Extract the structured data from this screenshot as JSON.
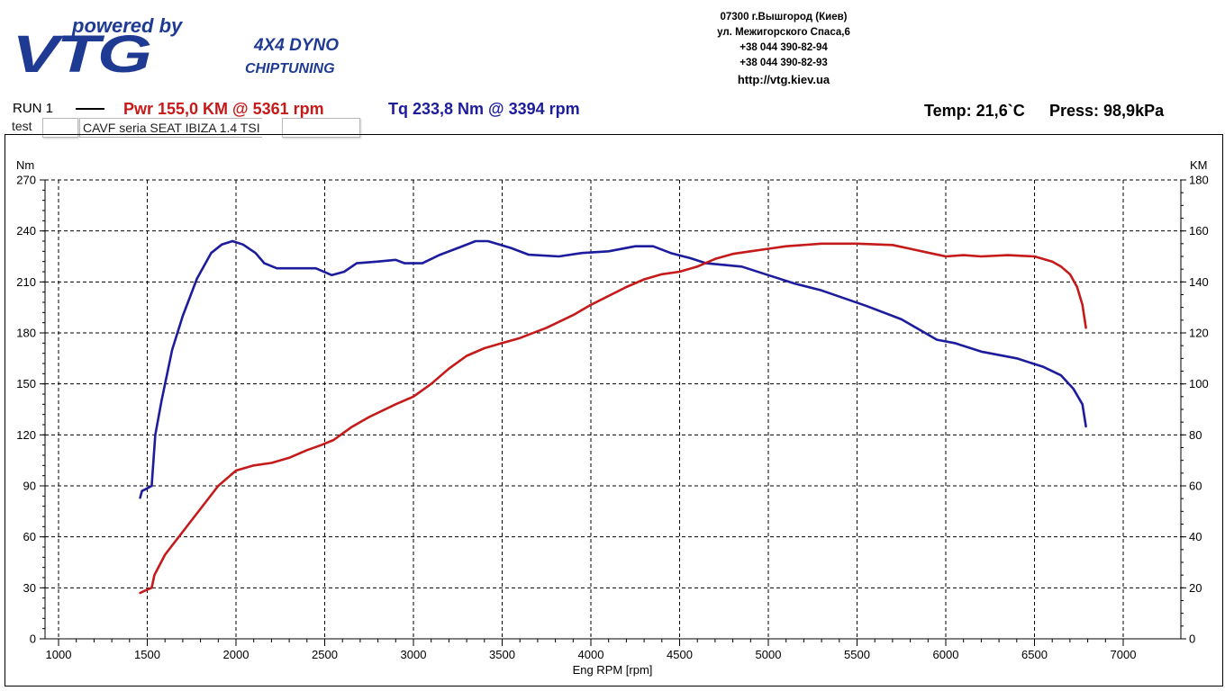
{
  "header": {
    "logo": {
      "tagline": "powered by",
      "brand": "VTG",
      "line1": "4X4 DYNO",
      "line2": "CHIPTUNING"
    },
    "address": {
      "line1": "07300 г.Вышгород (Киев)",
      "line2": "ул. Межигорского Спаса,6",
      "phone1": "+38 044 390-82-94",
      "phone2": "+38 044 390-82-93",
      "url": "http://vtg.kiev.ua"
    },
    "run_label": "RUN 1",
    "power_summary": "Pwr  155,0 KM @ 5361 rpm",
    "torque_summary": "Tq 233,8 Nm @ 3394 rpm",
    "temperature": "Temp: 21,6`C",
    "pressure": "Press: 98,9kPa",
    "test_label": "test",
    "vehicle": "CAVF seria SEAT IBIZA 1.4 TSI"
  },
  "colors": {
    "torque": "#1c1c9c",
    "power": "#c51a1a",
    "grid": "#000000",
    "logo_blue": "#1f3a93"
  },
  "chart_data": {
    "type": "line",
    "xlabel": "Eng RPM [rpm]",
    "ylabel_left": "Nm",
    "ylabel_right": "KM",
    "xlim": [
      1000,
      7000
    ],
    "xticks": [
      1000,
      1500,
      2000,
      2500,
      3000,
      3500,
      4000,
      4500,
      5000,
      5500,
      6000,
      6500,
      7000
    ],
    "ylim_left": [
      0,
      270
    ],
    "yticks_left": [
      0,
      30,
      60,
      90,
      120,
      150,
      180,
      210,
      240,
      270
    ],
    "ylim_right": [
      0,
      180
    ],
    "yticks_right": [
      0,
      20,
      40,
      60,
      80,
      100,
      120,
      140,
      160,
      180
    ],
    "grid": true,
    "series": [
      {
        "name": "Tq",
        "axis": "left",
        "color": "#1c1c9c",
        "points": [
          [
            1460,
            83
          ],
          [
            1470,
            87
          ],
          [
            1490,
            88
          ],
          [
            1525,
            90
          ],
          [
            1545,
            120
          ],
          [
            1580,
            140
          ],
          [
            1640,
            170
          ],
          [
            1700,
            190
          ],
          [
            1780,
            212
          ],
          [
            1860,
            227
          ],
          [
            1920,
            232
          ],
          [
            1980,
            234
          ],
          [
            2040,
            232
          ],
          [
            2110,
            227
          ],
          [
            2160,
            221
          ],
          [
            2230,
            218
          ],
          [
            2300,
            218
          ],
          [
            2450,
            218
          ],
          [
            2540,
            214
          ],
          [
            2610,
            216
          ],
          [
            2680,
            221
          ],
          [
            2800,
            222
          ],
          [
            2900,
            223
          ],
          [
            2950,
            221
          ],
          [
            3050,
            221
          ],
          [
            3150,
            226
          ],
          [
            3250,
            230
          ],
          [
            3350,
            234
          ],
          [
            3420,
            234
          ],
          [
            3550,
            230
          ],
          [
            3650,
            226
          ],
          [
            3820,
            225
          ],
          [
            3950,
            227
          ],
          [
            4100,
            228
          ],
          [
            4250,
            231
          ],
          [
            4350,
            231
          ],
          [
            4450,
            227
          ],
          [
            4560,
            224
          ],
          [
            4650,
            221
          ],
          [
            4850,
            219
          ],
          [
            5000,
            214
          ],
          [
            5150,
            209
          ],
          [
            5300,
            205
          ],
          [
            5550,
            196
          ],
          [
            5750,
            188
          ],
          [
            5850,
            182
          ],
          [
            5950,
            176
          ],
          [
            6050,
            174
          ],
          [
            6200,
            169
          ],
          [
            6400,
            165
          ],
          [
            6550,
            160
          ],
          [
            6650,
            155
          ],
          [
            6720,
            147
          ],
          [
            6770,
            138
          ],
          [
            6790,
            125
          ]
        ]
      },
      {
        "name": "Pwr",
        "axis": "right",
        "color": "#c51a1a",
        "points": [
          [
            1460,
            18
          ],
          [
            1490,
            19
          ],
          [
            1525,
            20
          ],
          [
            1540,
            25
          ],
          [
            1600,
            33
          ],
          [
            1700,
            42
          ],
          [
            1800,
            51
          ],
          [
            1900,
            60
          ],
          [
            2000,
            66
          ],
          [
            2100,
            68
          ],
          [
            2200,
            69
          ],
          [
            2300,
            71
          ],
          [
            2400,
            74
          ],
          [
            2480,
            76
          ],
          [
            2550,
            78
          ],
          [
            2650,
            83
          ],
          [
            2750,
            87
          ],
          [
            2900,
            92
          ],
          [
            3000,
            95
          ],
          [
            3100,
            100
          ],
          [
            3200,
            106
          ],
          [
            3300,
            111
          ],
          [
            3400,
            114
          ],
          [
            3500,
            116
          ],
          [
            3600,
            118
          ],
          [
            3750,
            122
          ],
          [
            3900,
            127
          ],
          [
            4000,
            131
          ],
          [
            4200,
            138
          ],
          [
            4300,
            141
          ],
          [
            4400,
            143
          ],
          [
            4500,
            144
          ],
          [
            4600,
            146
          ],
          [
            4700,
            149
          ],
          [
            4800,
            151
          ],
          [
            4900,
            152
          ],
          [
            5000,
            153
          ],
          [
            5100,
            154
          ],
          [
            5300,
            155
          ],
          [
            5500,
            155
          ],
          [
            5700,
            154.5
          ],
          [
            5800,
            153
          ],
          [
            5900,
            151.5
          ],
          [
            6000,
            150
          ],
          [
            6100,
            150.5
          ],
          [
            6200,
            150
          ],
          [
            6350,
            150.5
          ],
          [
            6500,
            150
          ],
          [
            6600,
            148
          ],
          [
            6650,
            146
          ],
          [
            6700,
            143
          ],
          [
            6740,
            138
          ],
          [
            6770,
            131
          ],
          [
            6790,
            122
          ]
        ]
      }
    ]
  }
}
